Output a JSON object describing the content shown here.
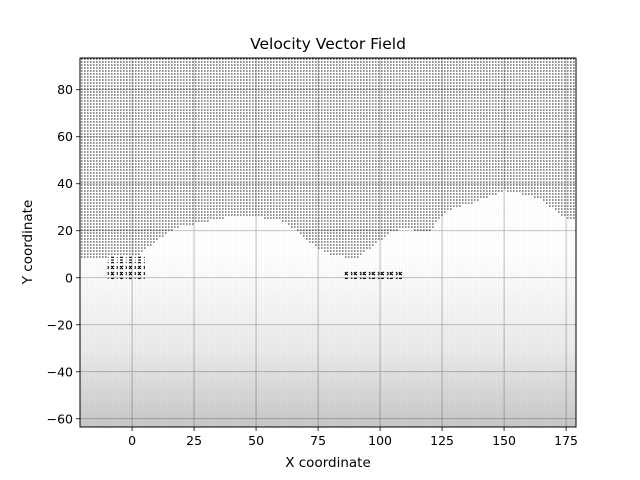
{
  "chart_data": {
    "type": "vector_field",
    "title": "Velocity Vector Field",
    "xlabel": "X coordinate",
    "ylabel": "Y coordinate",
    "xlim": [
      -21,
      179
    ],
    "ylim": [
      -63.5,
      93.5
    ],
    "xticks": [
      0,
      25,
      50,
      75,
      100,
      125,
      150,
      175
    ],
    "yticks": [
      -60,
      -40,
      -20,
      0,
      20,
      40,
      60,
      80
    ],
    "grid": true,
    "legend": "none",
    "arrow_color": "#000000",
    "grid_spacing": [
      1.33,
      1.33
    ],
    "dense_upper_region_boundary": {
      "x": [
        -20,
        -10,
        0,
        5,
        10,
        15,
        20,
        25,
        30,
        35,
        40,
        45,
        50,
        55,
        60,
        65,
        70,
        75,
        80,
        85,
        90,
        95,
        100,
        105,
        110,
        115,
        120,
        125,
        130,
        135,
        140,
        145,
        150,
        155,
        160,
        165,
        170,
        175
      ],
      "y": [
        8,
        8,
        7,
        12,
        16,
        20,
        22,
        23,
        24,
        25,
        26,
        26,
        26,
        25,
        24,
        21,
        16,
        12,
        10,
        9,
        8,
        12,
        16,
        20,
        21,
        20,
        20,
        27,
        30,
        31,
        33,
        35,
        37,
        36,
        35,
        33,
        29,
        25
      ]
    },
    "wake_regions": [
      {
        "x": [
          -10,
          5
        ],
        "y": [
          -1,
          9
        ]
      },
      {
        "x": [
          85,
          110
        ],
        "y": [
          -1,
          3
        ]
      }
    ]
  }
}
